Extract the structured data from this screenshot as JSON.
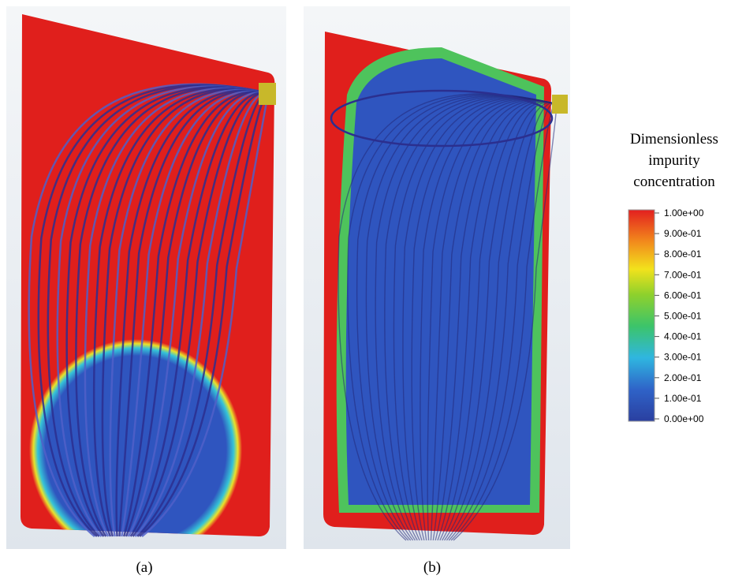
{
  "panels": [
    {
      "label": "(a)"
    },
    {
      "label": "(b)"
    }
  ],
  "colorbar": {
    "title_lines": [
      "Dimensionless",
      "impurity",
      "concentration"
    ],
    "ticks": [
      {
        "value": 1.0,
        "label": "1.00e+00"
      },
      {
        "value": 0.9,
        "label": "9.00e-01"
      },
      {
        "value": 0.8,
        "label": "8.00e-01"
      },
      {
        "value": 0.7,
        "label": "7.00e-01"
      },
      {
        "value": 0.6,
        "label": "6.00e-01"
      },
      {
        "value": 0.5,
        "label": "5.00e-01"
      },
      {
        "value": 0.4,
        "label": "4.00e-01"
      },
      {
        "value": 0.3,
        "label": "3.00e-01"
      },
      {
        "value": 0.2,
        "label": "2.00e-01"
      },
      {
        "value": 0.1,
        "label": "1.00e-01"
      },
      {
        "value": 0.0,
        "label": "0.00e+00"
      }
    ]
  }
}
